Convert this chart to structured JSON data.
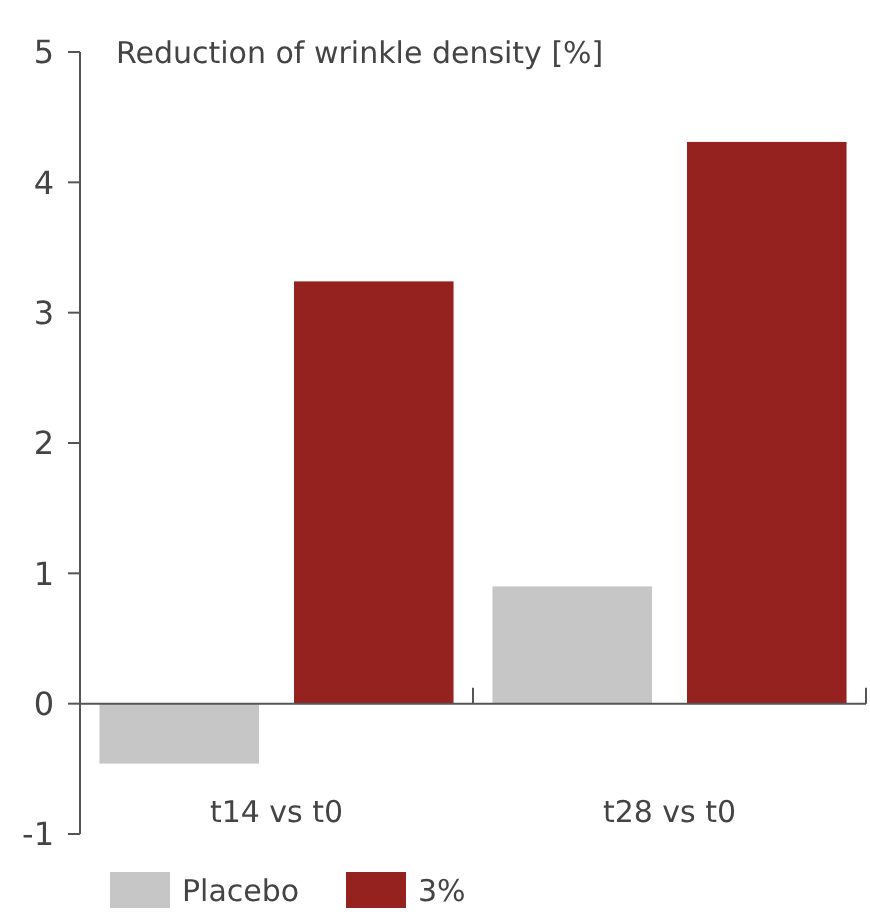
{
  "chart_data": {
    "type": "bar",
    "ylabel": "Reduction of wrinkle density  [%]",
    "categories": [
      "t14 vs t0",
      "t28 vs t0"
    ],
    "series": [
      {
        "name": "Placebo",
        "color": "#c6c6c6",
        "values": [
          -0.46,
          0.9
        ]
      },
      {
        "name": "3%",
        "color": "#962220",
        "values": [
          3.24,
          4.31
        ]
      }
    ],
    "ylim": [
      -1,
      5
    ],
    "yticks": [
      -1,
      0,
      1,
      2,
      3,
      4,
      5
    ],
    "legend": "bottom"
  }
}
